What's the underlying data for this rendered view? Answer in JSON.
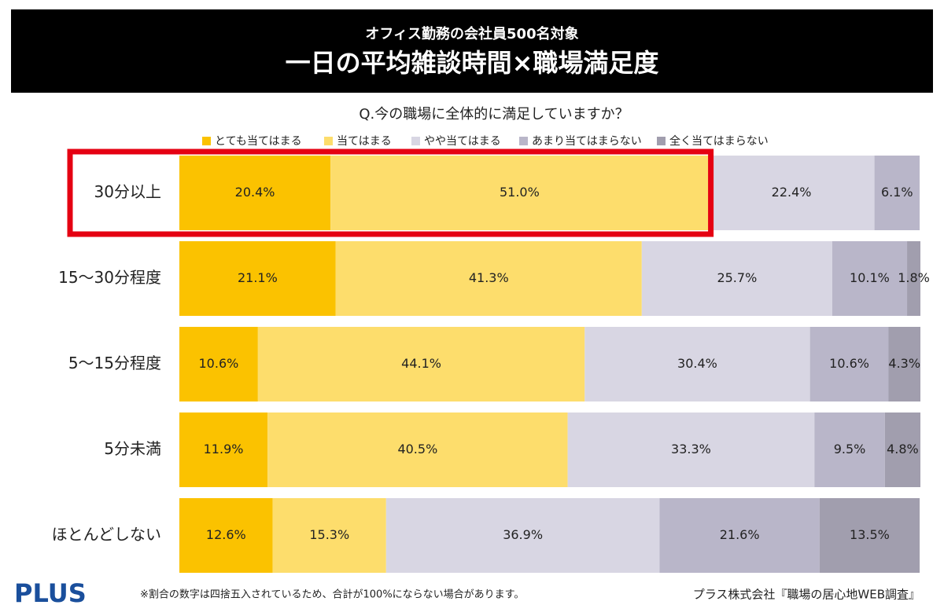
{
  "chart_data": {
    "type": "stacked-bar-horizontal",
    "supertitle": "オフィス勤務の会社員500名対象",
    "title": "一日の平均雑談時間×職場満足度",
    "subtitle": "Q.今の職場に全体的に満足していますか？",
    "categories": [
      "30分以上",
      "15〜30分程度",
      "5〜15分程度",
      "5分未満",
      "ほとんどしない"
    ],
    "xlim": [
      0,
      100
    ],
    "highlight": 0,
    "series": [
      {
        "name": "とても当てはまる",
        "color": "#fbc200",
        "values": [
          20.4,
          21.1,
          10.6,
          11.9,
          12.6
        ],
        "value_labels": [
          "20.4%",
          "21.1%",
          "10.6%",
          "11.9%",
          "12.6%"
        ]
      },
      {
        "name": "当てはまる",
        "color": "#fddd6c",
        "values": [
          51.0,
          41.3,
          44.1,
          40.5,
          15.3
        ],
        "value_labels": [
          "51.0%",
          "41.3%",
          "44.1%",
          "40.5%",
          "15.3%"
        ]
      },
      {
        "name": "やや当てはまる",
        "color": "#d8d6e3",
        "values": [
          22.4,
          25.7,
          30.4,
          33.3,
          36.9
        ],
        "value_labels": [
          "22.4%",
          "25.7%",
          "30.4%",
          "33.3%",
          "36.9%"
        ]
      },
      {
        "name": "あまり当てはまらない",
        "color": "#b9b6c9",
        "values": [
          6.1,
          10.1,
          10.6,
          9.5,
          21.6
        ],
        "value_labels": [
          "6.1%",
          "10.1%",
          "10.6%",
          "9.5%",
          "21.6%"
        ]
      },
      {
        "name": "全く当てはまらない",
        "color": "#a19eae",
        "values": [
          null,
          1.8,
          4.3,
          4.8,
          13.5
        ],
        "value_labels": [
          null,
          "1.8%",
          "4.3%",
          "4.8%",
          "13.5%"
        ]
      }
    ]
  },
  "footer": {
    "logo": "PLUS",
    "note": "※割合の数字は四捨五入されているため、合計が100%にならない場合があります。",
    "source": "プラス株式会社『職場の居心地WEB調査』"
  }
}
